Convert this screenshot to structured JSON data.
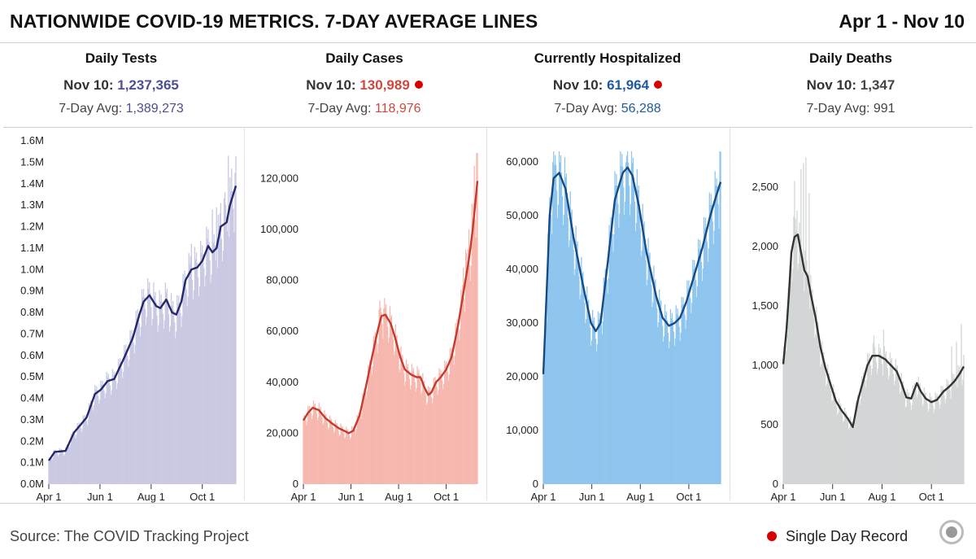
{
  "header": {
    "title": "NATIONWIDE COVID-19 METRICS. 7-DAY AVERAGE LINES",
    "date_range": "Apr 1 - Nov 10"
  },
  "footer": {
    "source": "Source: The COVID Tracking Project",
    "legend_label": "Single Day Record"
  },
  "colors": {
    "record_dot": "#d90000"
  },
  "chart_data": [
    {
      "type": "bar",
      "title": "Daily Tests",
      "today_label": "Nov 10:",
      "today_value": "1,237,365",
      "avg_label": "7-Day Avg:",
      "avg_value": "1,389,273",
      "single_day_record": false,
      "value_color": "#4b4f93",
      "bar_color": "#c9c9e3",
      "line_color": "#23276b",
      "ylim": [
        0,
        1600000
      ],
      "yticks": [
        0,
        100000,
        200000,
        300000,
        400000,
        500000,
        600000,
        700000,
        800000,
        900000,
        1000000,
        1100000,
        1200000,
        1300000,
        1400000,
        1500000,
        1600000
      ],
      "ytick_labels": [
        "0.0M",
        "0.1M",
        "0.2M",
        "0.3M",
        "0.4M",
        "0.5M",
        "0.6M",
        "0.7M",
        "0.8M",
        "0.9M",
        "1.0M",
        "1.1M",
        "1.2M",
        "1.3M",
        "1.4M",
        "1.5M",
        "1.6M"
      ],
      "xticks": [
        0,
        61,
        122,
        183
      ],
      "xtick_labels": [
        "Apr 1",
        "Jun 1",
        "Aug 1",
        "Oct 1"
      ],
      "days": 224,
      "avg_points": [
        [
          0,
          110000
        ],
        [
          7,
          150000
        ],
        [
          20,
          155000
        ],
        [
          30,
          240000
        ],
        [
          45,
          310000
        ],
        [
          55,
          420000
        ],
        [
          62,
          440000
        ],
        [
          70,
          480000
        ],
        [
          78,
          490000
        ],
        [
          90,
          590000
        ],
        [
          100,
          680000
        ],
        [
          108,
          790000
        ],
        [
          113,
          850000
        ],
        [
          120,
          880000
        ],
        [
          128,
          830000
        ],
        [
          133,
          820000
        ],
        [
          140,
          860000
        ],
        [
          147,
          800000
        ],
        [
          152,
          790000
        ],
        [
          158,
          850000
        ],
        [
          163,
          950000
        ],
        [
          170,
          1000000
        ],
        [
          177,
          1010000
        ],
        [
          183,
          1040000
        ],
        [
          190,
          1110000
        ],
        [
          195,
          1080000
        ],
        [
          200,
          1100000
        ],
        [
          205,
          1200000
        ],
        [
          212,
          1220000
        ],
        [
          216,
          1300000
        ],
        [
          223,
          1390000
        ]
      ],
      "spikes": [
        [
          210,
          1360000
        ],
        [
          214,
          1530000
        ],
        [
          218,
          1470000
        ],
        [
          222,
          1450000
        ],
        [
          205,
          1310000
        ],
        [
          200,
          1290000
        ],
        [
          195,
          1280000
        ],
        [
          188,
          1200000
        ],
        [
          170,
          1120000
        ],
        [
          125,
          940000
        ]
      ]
    },
    {
      "type": "bar",
      "title": "Daily Cases",
      "today_label": "Nov 10:",
      "today_value": "130,989",
      "avg_label": "7-Day Avg:",
      "avg_value": "118,976",
      "single_day_record": true,
      "value_color": "#d0483d",
      "bar_color": "#f6b7ae",
      "line_color": "#c63a2d",
      "ylim": [
        0,
        130000
      ],
      "yticks": [
        0,
        20000,
        40000,
        60000,
        80000,
        100000,
        120000
      ],
      "ytick_labels": [
        "0",
        "20,000",
        "40,000",
        "60,000",
        "80,000",
        "100,000",
        "120,000"
      ],
      "xticks": [
        0,
        61,
        122,
        183
      ],
      "xtick_labels": [
        "Apr 1",
        "Jun 1",
        "Aug 1",
        "Oct 1"
      ],
      "days": 224,
      "avg_points": [
        [
          0,
          25000
        ],
        [
          6,
          28000
        ],
        [
          12,
          30000
        ],
        [
          20,
          29000
        ],
        [
          28,
          26000
        ],
        [
          36,
          24000
        ],
        [
          45,
          22000
        ],
        [
          52,
          21000
        ],
        [
          58,
          20000
        ],
        [
          64,
          21000
        ],
        [
          72,
          27000
        ],
        [
          80,
          38000
        ],
        [
          88,
          50000
        ],
        [
          95,
          60000
        ],
        [
          100,
          66000
        ],
        [
          105,
          66500
        ],
        [
          112,
          63000
        ],
        [
          118,
          57000
        ],
        [
          124,
          50000
        ],
        [
          130,
          45000
        ],
        [
          138,
          43000
        ],
        [
          145,
          42000
        ],
        [
          150,
          42000
        ],
        [
          155,
          38000
        ],
        [
          160,
          35000
        ],
        [
          164,
          36000
        ],
        [
          170,
          40000
        ],
        [
          176,
          42000
        ],
        [
          183,
          45000
        ],
        [
          190,
          50000
        ],
        [
          198,
          62000
        ],
        [
          205,
          75000
        ],
        [
          212,
          88000
        ],
        [
          217,
          100000
        ],
        [
          223,
          119000
        ]
      ],
      "spikes": [
        [
          222,
          131000
        ],
        [
          219,
          125000
        ],
        [
          216,
          110000
        ],
        [
          212,
          100000
        ],
        [
          208,
          92000
        ],
        [
          205,
          85000
        ],
        [
          98,
          72000
        ],
        [
          103,
          69000
        ]
      ]
    },
    {
      "type": "bar",
      "title": "Currently Hospitalized",
      "today_label": "Nov 10:",
      "today_value": "61,964",
      "avg_label": "7-Day Avg:",
      "avg_value": "56,288",
      "single_day_record": true,
      "value_color": "#1f5aa0",
      "bar_color": "#8ec5ee",
      "line_color": "#164a87",
      "ylim": [
        0,
        62000
      ],
      "yticks": [
        0,
        10000,
        20000,
        30000,
        40000,
        50000,
        60000
      ],
      "ytick_labels": [
        "0",
        "10,000",
        "20,000",
        "30,000",
        "40,000",
        "50,000",
        "60,000"
      ],
      "xticks": [
        0,
        61,
        122,
        183
      ],
      "xtick_labels": [
        "Apr 1",
        "Jun 1",
        "Aug 1",
        "Oct 1"
      ],
      "days": 224,
      "avg_points": [
        [
          0,
          20500
        ],
        [
          4,
          35000
        ],
        [
          8,
          50000
        ],
        [
          13,
          57000
        ],
        [
          20,
          58000
        ],
        [
          28,
          55000
        ],
        [
          38,
          46000
        ],
        [
          50,
          37000
        ],
        [
          60,
          30000
        ],
        [
          66,
          28500
        ],
        [
          72,
          30000
        ],
        [
          80,
          40000
        ],
        [
          90,
          53000
        ],
        [
          100,
          58000
        ],
        [
          106,
          59000
        ],
        [
          112,
          57500
        ],
        [
          120,
          52000
        ],
        [
          130,
          43000
        ],
        [
          142,
          35000
        ],
        [
          150,
          31000
        ],
        [
          158,
          29500
        ],
        [
          165,
          30000
        ],
        [
          172,
          31000
        ],
        [
          180,
          34000
        ],
        [
          190,
          39000
        ],
        [
          200,
          44000
        ],
        [
          210,
          50000
        ],
        [
          216,
          53000
        ],
        [
          223,
          56300
        ]
      ],
      "spikes": [
        [
          222,
          62000
        ],
        [
          218,
          57000
        ],
        [
          12,
          60000
        ],
        [
          16,
          59500
        ],
        [
          104,
          60000
        ]
      ]
    },
    {
      "type": "bar",
      "title": "Daily Deaths",
      "today_label": "Nov 10:",
      "today_value": "1,347",
      "avg_label": "7-Day Avg:",
      "avg_value": "991",
      "single_day_record": false,
      "value_color": "#444444",
      "bar_color": "#d3d6d6",
      "line_color": "#333333",
      "ylim": [
        0,
        2800
      ],
      "yticks": [
        0,
        500,
        1000,
        1500,
        2000,
        2500
      ],
      "ytick_labels": [
        "0",
        "500",
        "1,000",
        "1,500",
        "2,000",
        "2,500"
      ],
      "xticks": [
        0,
        61,
        122,
        183
      ],
      "xtick_labels": [
        "Apr 1",
        "Jun 1",
        "Aug 1",
        "Oct 1"
      ],
      "days": 224,
      "avg_points": [
        [
          0,
          1010
        ],
        [
          4,
          1300
        ],
        [
          7,
          1600
        ],
        [
          10,
          1950
        ],
        [
          14,
          2080
        ],
        [
          18,
          2100
        ],
        [
          22,
          1950
        ],
        [
          26,
          1800
        ],
        [
          30,
          1750
        ],
        [
          34,
          1600
        ],
        [
          40,
          1400
        ],
        [
          46,
          1150
        ],
        [
          52,
          980
        ],
        [
          58,
          850
        ],
        [
          65,
          700
        ],
        [
          72,
          620
        ],
        [
          80,
          550
        ],
        [
          86,
          480
        ],
        [
          92,
          700
        ],
        [
          98,
          850
        ],
        [
          104,
          1000
        ],
        [
          110,
          1080
        ],
        [
          118,
          1080
        ],
        [
          126,
          1050
        ],
        [
          133,
          1000
        ],
        [
          140,
          950
        ],
        [
          146,
          850
        ],
        [
          152,
          730
        ],
        [
          158,
          720
        ],
        [
          165,
          850
        ],
        [
          170,
          780
        ],
        [
          176,
          720
        ],
        [
          183,
          690
        ],
        [
          190,
          710
        ],
        [
          198,
          780
        ],
        [
          205,
          820
        ],
        [
          212,
          870
        ],
        [
          218,
          930
        ],
        [
          223,
          990
        ]
      ],
      "spikes": [
        [
          14,
          2550
        ],
        [
          17,
          2300
        ],
        [
          22,
          2650
        ],
        [
          25,
          2700
        ],
        [
          28,
          2750
        ],
        [
          32,
          2450
        ],
        [
          20,
          2200
        ],
        [
          112,
          1250
        ],
        [
          124,
          1300
        ],
        [
          118,
          1180
        ],
        [
          220,
          1350
        ],
        [
          214,
          1200
        ],
        [
          208,
          1160
        ]
      ]
    }
  ]
}
